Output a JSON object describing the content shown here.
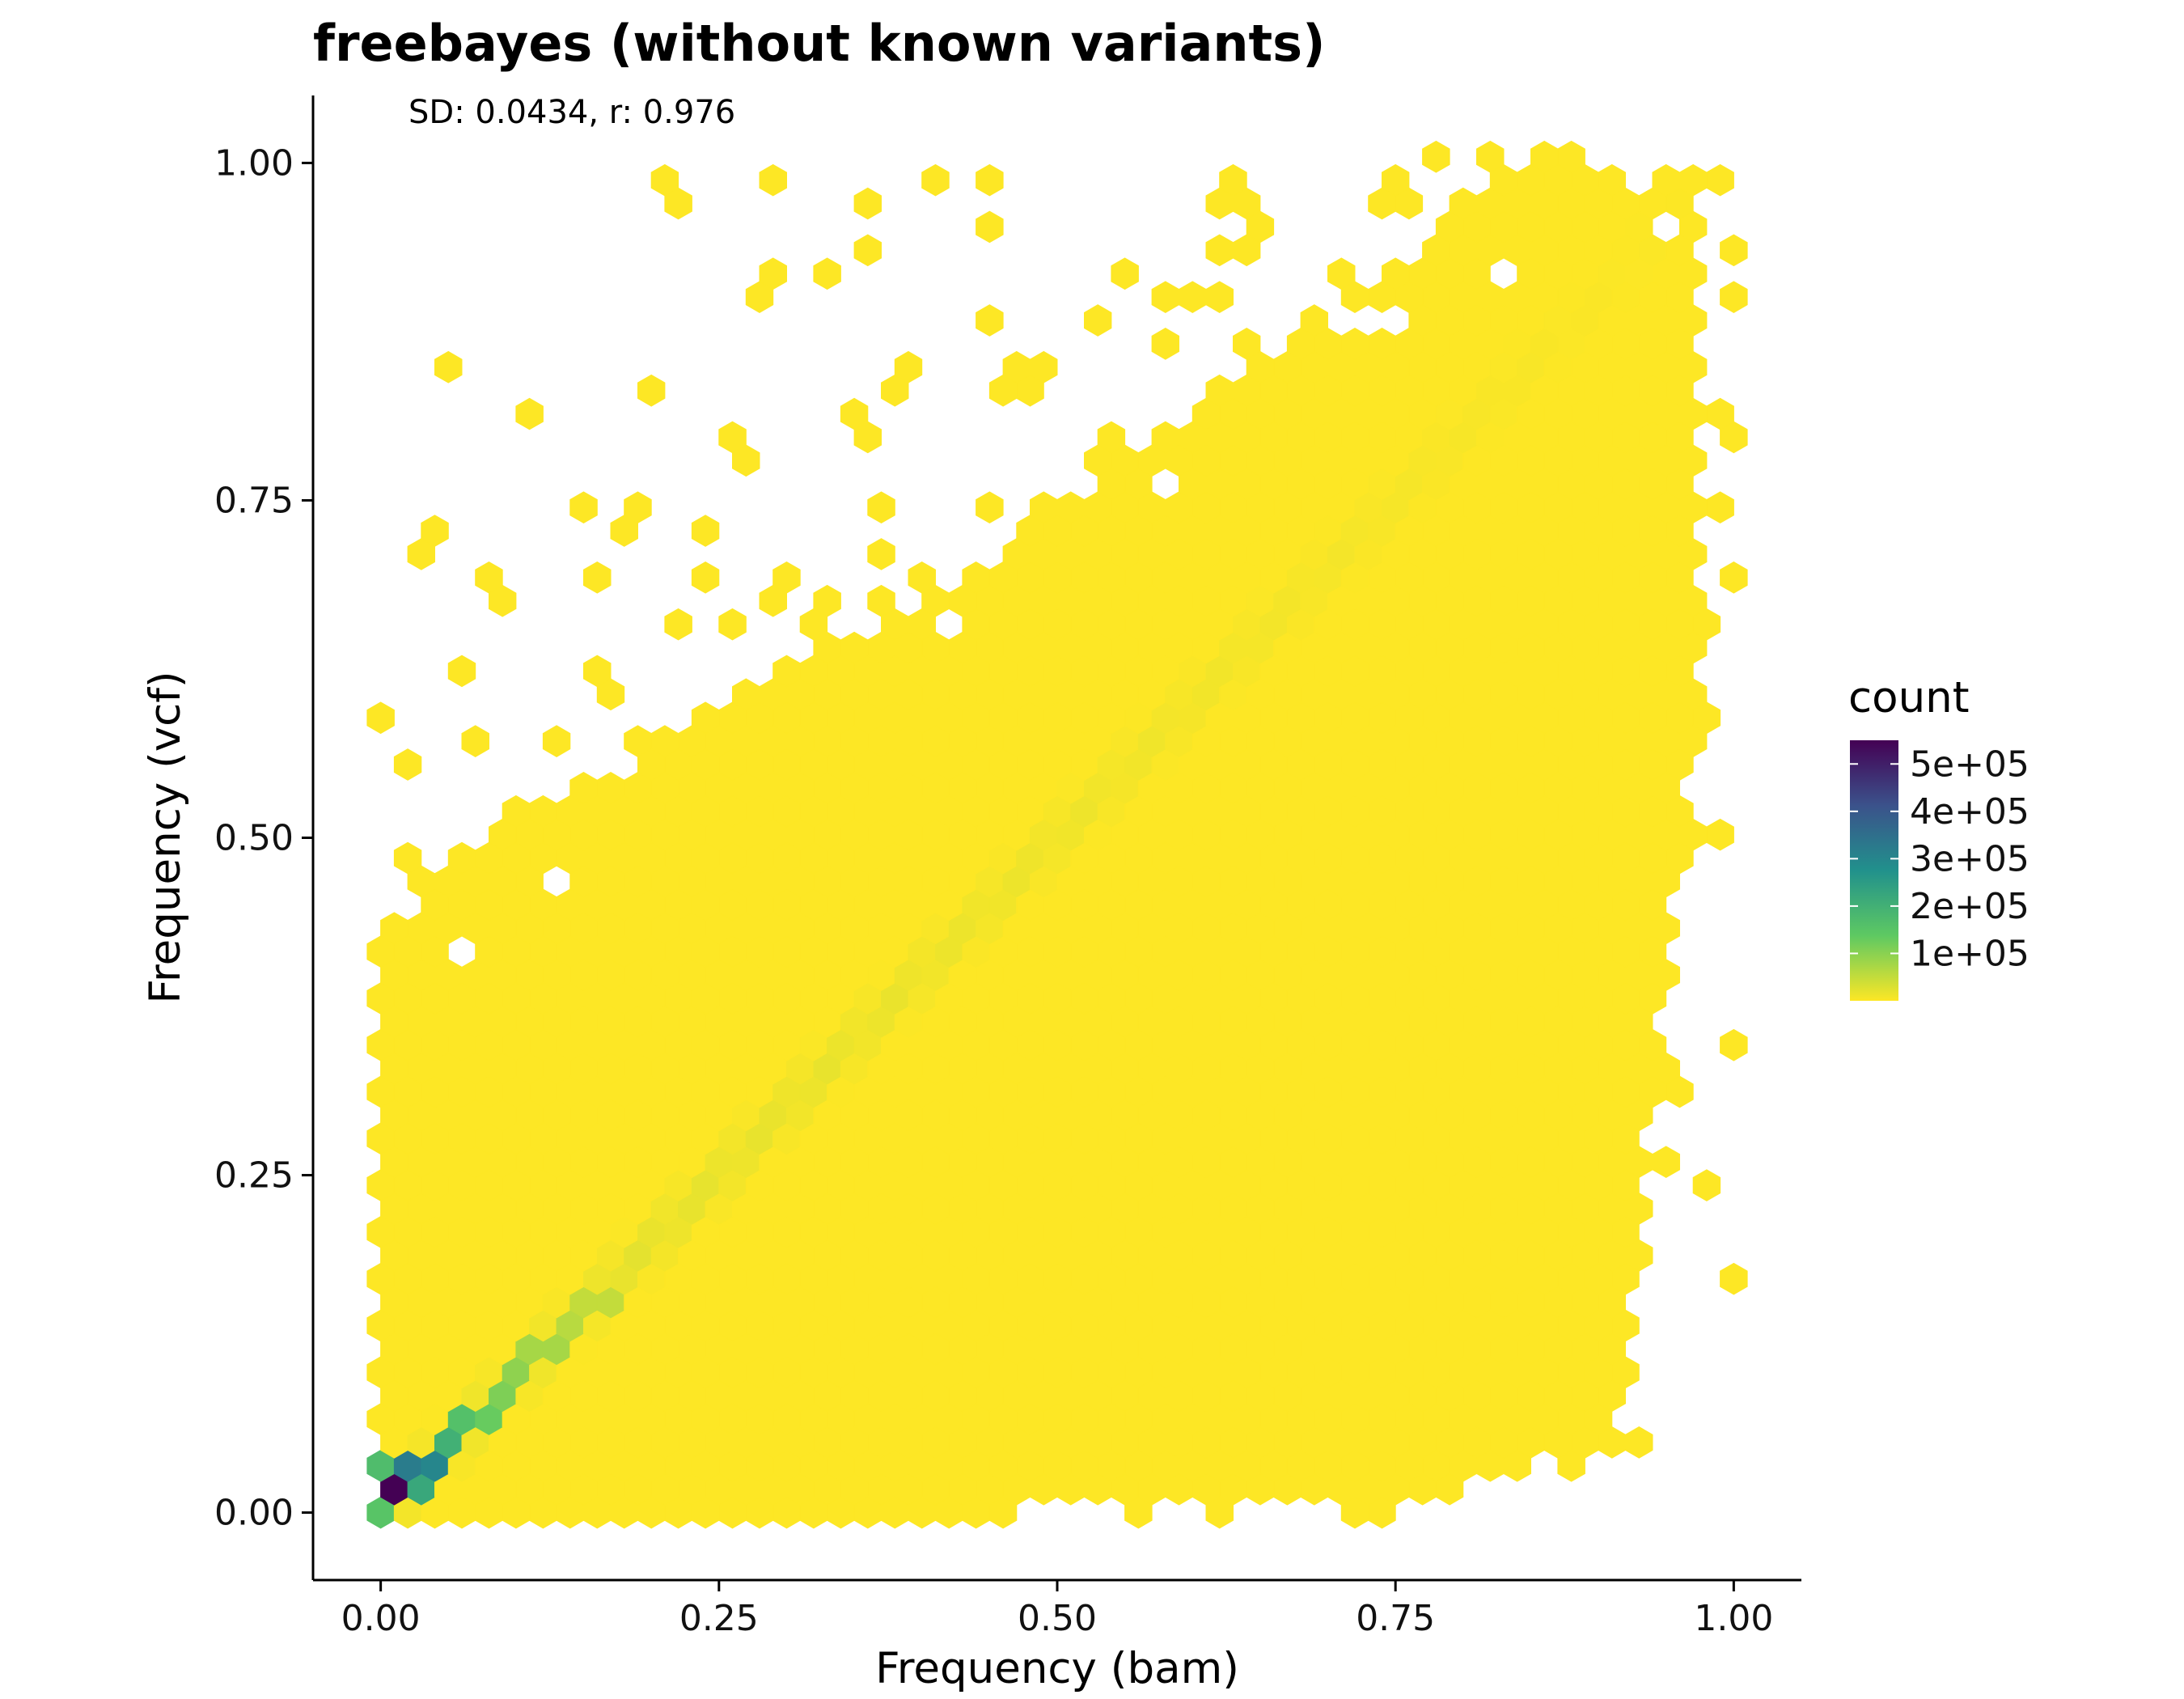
{
  "chart_data": {
    "type": "heatmap",
    "subtype": "hexbin",
    "title": "freebayes (without known variants)",
    "annotation": "SD: 0.0434, r: 0.976",
    "xlabel": "Frequency (bam)",
    "ylabel": "Frequency (vcf)",
    "xlim": [
      -0.05,
      1.05
    ],
    "ylim": [
      -0.05,
      1.05
    ],
    "xticks": [
      0.0,
      0.25,
      0.5,
      0.75,
      1.0
    ],
    "xtick_labels": [
      "0.00",
      "0.25",
      "0.50",
      "0.75",
      "1.00"
    ],
    "yticks": [
      0.0,
      0.25,
      0.5,
      0.75,
      1.0
    ],
    "ytick_labels": [
      "0.00",
      "0.25",
      "0.50",
      "0.75",
      "1.00"
    ],
    "grid": false,
    "colormap": "viridis (reversed: low = yellow, high = dark purple)",
    "legend": {
      "title": "count",
      "position": "right",
      "range": [
        0,
        550000
      ],
      "ticks": [
        500000,
        400000,
        300000,
        200000,
        100000
      ],
      "tick_labels": [
        "5e+05",
        "4e+05",
        "3e+05",
        "2e+05",
        "1e+05"
      ]
    },
    "colors": {
      "low": "#fde725",
      "mid": "#21918c",
      "high": "#440154"
    },
    "high_count_bins": [
      {
        "x": 0.01,
        "y": 0.02,
        "count": 550000
      },
      {
        "x": 0.02,
        "y": 0.035,
        "count": 320000
      },
      {
        "x": 0.04,
        "y": 0.035,
        "count": 300000
      },
      {
        "x": 0.03,
        "y": 0.02,
        "count": 220000
      },
      {
        "x": 0.0,
        "y": 0.035,
        "count": 170000
      },
      {
        "x": 0.05,
        "y": 0.055,
        "count": 200000
      },
      {
        "x": 0.06,
        "y": 0.07,
        "count": 160000
      },
      {
        "x": 0.0,
        "y": 0.0,
        "count": 150000
      },
      {
        "x": 0.07,
        "y": 0.075,
        "count": 130000
      },
      {
        "x": 0.09,
        "y": 0.09,
        "count": 110000
      },
      {
        "x": 0.1,
        "y": 0.105,
        "count": 95000
      },
      {
        "x": 0.12,
        "y": 0.12,
        "count": 75000
      },
      {
        "x": 0.14,
        "y": 0.14,
        "count": 60000
      },
      {
        "x": 0.16,
        "y": 0.16,
        "count": 50000
      }
    ],
    "diagonal_trend": {
      "from": [
        0.0,
        0.0
      ],
      "to": [
        1.0,
        1.0
      ]
    }
  }
}
